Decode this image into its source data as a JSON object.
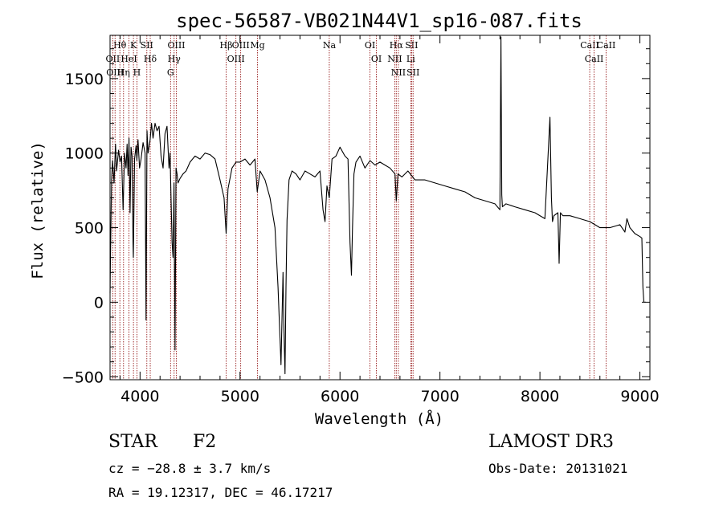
{
  "chart_data": {
    "type": "line",
    "title": "spec-56587-VB021N44V1_sp16-087.fits",
    "xlabel": "Wavelength (Å)",
    "ylabel": "Flux (relative)",
    "xlim": [
      3700,
      9100
    ],
    "ylim": [
      -520,
      1790
    ],
    "xticks": [
      4000,
      5000,
      6000,
      7000,
      8000,
      9000
    ],
    "yticks": [
      -500,
      0,
      500,
      1000,
      1500
    ],
    "grid": false,
    "series": [
      {
        "x": [
          3700,
          3705,
          3715,
          3725,
          3740,
          3755,
          3765,
          3785,
          3800,
          3815,
          3830,
          3845,
          3860,
          3870,
          3880,
          3890,
          3900,
          3910,
          3920,
          3930,
          3933,
          3945,
          3960,
          3968,
          3980,
          3995,
          4010,
          4030,
          4050,
          4060,
          4070,
          4080,
          4101,
          4115,
          4130,
          4150,
          4170,
          4190,
          4210,
          4230,
          4250,
          4270,
          4290,
          4300,
          4310,
          4320,
          4330,
          4340,
          4350,
          4360,
          4370,
          4380,
          4400,
          4430,
          4460,
          4500,
          4550,
          4600,
          4650,
          4700,
          4750,
          4800,
          4840,
          4861,
          4880,
          4920,
          4960,
          5000,
          5050,
          5100,
          5150,
          5172,
          5200,
          5250,
          5300,
          5350,
          5380,
          5410,
          5430,
          5440,
          5450,
          5460,
          5470,
          5490,
          5520,
          5560,
          5600,
          5650,
          5700,
          5750,
          5800,
          5830,
          5850,
          5870,
          5893,
          5920,
          5960,
          6000,
          6050,
          6080,
          6100,
          6115,
          6125,
          6140,
          6160,
          6200,
          6250,
          6300,
          6350,
          6400,
          6450,
          6500,
          6550,
          6563,
          6580,
          6620,
          6680,
          6750,
          6850,
          6950,
          7050,
          7150,
          7250,
          7350,
          7450,
          7550,
          7600,
          7610,
          7618,
          7625,
          7660,
          7750,
          7850,
          7950,
          8050,
          8100,
          8115,
          8125,
          8140,
          8180,
          8192,
          8205,
          8230,
          8300,
          8400,
          8500,
          8550,
          8600,
          8700,
          8800,
          8850,
          8870,
          8900,
          8950,
          9000,
          9020,
          9030,
          9040,
          9060
        ],
        "y": [
          60,
          330,
          820,
          950,
          800,
          1060,
          880,
          1020,
          940,
          980,
          620,
          1000,
          900,
          1060,
          850,
          1100,
          600,
          1040,
          980,
          400,
          300,
          960,
          1050,
          950,
          1090,
          900,
          960,
          1070,
          1000,
          -120,
          1150,
          1000,
          1090,
          1200,
          1100,
          1200,
          1150,
          1180,
          980,
          900,
          1130,
          1180,
          900,
          1000,
          700,
          400,
          300,
          800,
          -320,
          900,
          860,
          800,
          830,
          860,
          880,
          940,
          980,
          960,
          1000,
          990,
          960,
          820,
          700,
          460,
          760,
          900,
          940,
          940,
          960,
          920,
          960,
          740,
          880,
          820,
          700,
          500,
          100,
          -420,
          200,
          -200,
          -480,
          100,
          550,
          820,
          880,
          860,
          820,
          880,
          860,
          840,
          880,
          620,
          540,
          780,
          700,
          960,
          980,
          1040,
          980,
          960,
          400,
          180,
          500,
          860,
          940,
          980,
          900,
          950,
          920,
          940,
          920,
          900,
          860,
          680,
          860,
          840,
          880,
          820,
          820,
          800,
          780,
          760,
          740,
          700,
          680,
          660,
          620,
          1780,
          720,
          640,
          660,
          640,
          620,
          600,
          560,
          1240,
          700,
          540,
          580,
          600,
          260,
          600,
          580,
          580,
          560,
          540,
          520,
          500,
          500,
          520,
          470,
          560,
          500,
          460,
          440,
          430,
          100,
          0,
          0
        ]
      }
    ],
    "lines": [
      {
        "label": "Hθ",
        "wl": 3798
      },
      {
        "label": "OII",
        "wl": 3727
      },
      {
        "label": "OIII",
        "wl": 3750
      },
      {
        "label": "HeI",
        "wl": 3889
      },
      {
        "label": "Hη",
        "wl": 3835
      },
      {
        "label": "K",
        "wl": 3934
      },
      {
        "label": "H",
        "wl": 3969
      },
      {
        "label": "SII",
        "wl": 4068
      },
      {
        "label": "Hδ",
        "wl": 4102
      },
      {
        "label": "OIII",
        "wl": 4363
      },
      {
        "label": "Hγ",
        "wl": 4341
      },
      {
        "label": "G",
        "wl": 4305
      },
      {
        "label": "Hβ",
        "wl": 4861
      },
      {
        "label": "OIII",
        "wl": 4959
      },
      {
        "label": "OIII",
        "wl": 5007
      },
      {
        "label": "Mg",
        "wl": 5175
      },
      {
        "label": "Na",
        "wl": 5893
      },
      {
        "label": "OI",
        "wl": 6300
      },
      {
        "label": "OI",
        "wl": 6364
      },
      {
        "label": "Hα",
        "wl": 6563
      },
      {
        "label": "NII",
        "wl": 6548
      },
      {
        "label": "NII",
        "wl": 6584
      },
      {
        "label": "SII",
        "wl": 6716
      },
      {
        "label": "Li",
        "wl": 6708
      },
      {
        "label": "SII",
        "wl": 6731
      },
      {
        "label": "CaII",
        "wl": 8498
      },
      {
        "label": "CaII",
        "wl": 8542
      },
      {
        "label": "CaII",
        "wl": 8662
      }
    ],
    "line_color": "#8b0000"
  },
  "info": {
    "objtype": "STAR",
    "subclass": "F2",
    "survey": "LAMOST DR3",
    "cz": "cz = −28.8 ± 3.7 km/s",
    "obsdate": "Obs-Date: 20131021",
    "radec": "RA =  19.12317, DEC =  46.17217"
  }
}
